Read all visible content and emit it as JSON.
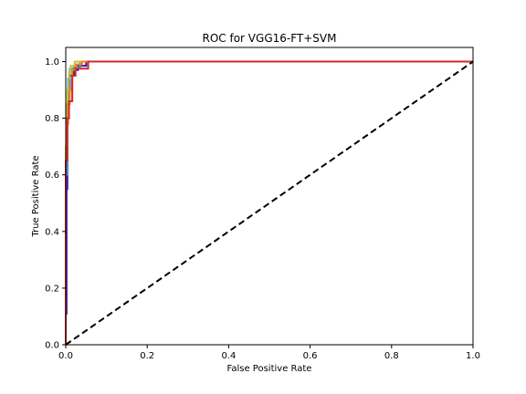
{
  "chart_data": {
    "type": "line",
    "title": "ROC for VGG16-FT+SVM",
    "xlabel": "False Positive Rate",
    "ylabel": "True Positive Rate",
    "xlim": [
      0.0,
      1.0
    ],
    "ylim": [
      0.0,
      1.05
    ],
    "xticks": [
      "0.0",
      "0.2",
      "0.4",
      "0.6",
      "0.8",
      "1.0"
    ],
    "yticks": [
      "0.0",
      "0.2",
      "0.4",
      "0.6",
      "0.8",
      "1.0"
    ],
    "grid": false,
    "legend": "none",
    "series": [
      {
        "color": "#1f1fbf",
        "style": "solid",
        "x": [
          0.0,
          0.0,
          0.002,
          0.002,
          0.004,
          0.004,
          0.006,
          0.006,
          0.01,
          0.01,
          0.02,
          0.02,
          0.03,
          0.03,
          0.05,
          0.05,
          1.0
        ],
        "y": [
          0.0,
          0.11,
          0.11,
          0.55,
          0.55,
          0.8,
          0.8,
          0.9,
          0.9,
          0.95,
          0.95,
          0.97,
          0.97,
          0.985,
          0.985,
          1.0,
          1.0
        ]
      },
      {
        "color": "#2a9fd6",
        "style": "solid",
        "x": [
          0.0,
          0.0,
          0.003,
          0.003,
          0.006,
          0.006,
          0.01,
          0.01,
          0.02,
          0.02,
          0.035,
          0.035,
          1.0
        ],
        "y": [
          0.0,
          0.6,
          0.6,
          0.85,
          0.85,
          0.94,
          0.94,
          0.975,
          0.975,
          0.98,
          0.98,
          1.0,
          1.0
        ]
      },
      {
        "color": "#c8c832",
        "style": "solid",
        "x": [
          0.0,
          0.0,
          0.004,
          0.004,
          0.008,
          0.008,
          0.012,
          0.012,
          0.022,
          0.022,
          1.0
        ],
        "y": [
          0.0,
          0.7,
          0.7,
          0.9,
          0.9,
          0.96,
          0.96,
          0.985,
          0.985,
          1.0,
          1.0
        ]
      },
      {
        "color": "#ff7f0e",
        "style": "solid",
        "x": [
          0.0,
          0.0,
          0.003,
          0.003,
          0.006,
          0.006,
          0.01,
          0.01,
          0.016,
          0.016,
          0.025,
          0.025,
          0.04,
          0.04,
          1.0
        ],
        "y": [
          0.0,
          0.65,
          0.65,
          0.78,
          0.78,
          0.85,
          0.85,
          0.9,
          0.9,
          0.97,
          0.97,
          0.99,
          0.99,
          1.0,
          1.0
        ]
      },
      {
        "color": "#d62728",
        "style": "solid",
        "x": [
          0.0,
          0.0,
          0.004,
          0.004,
          0.008,
          0.008,
          0.016,
          0.016,
          0.024,
          0.024,
          0.055,
          0.055,
          1.0
        ],
        "y": [
          0.0,
          0.65,
          0.65,
          0.8,
          0.8,
          0.86,
          0.86,
          0.95,
          0.95,
          0.975,
          0.975,
          1.0,
          1.0
        ]
      },
      {
        "color": "#000000",
        "style": "dashed",
        "x": [
          0.0,
          1.0
        ],
        "y": [
          0.0,
          1.0
        ]
      }
    ]
  }
}
